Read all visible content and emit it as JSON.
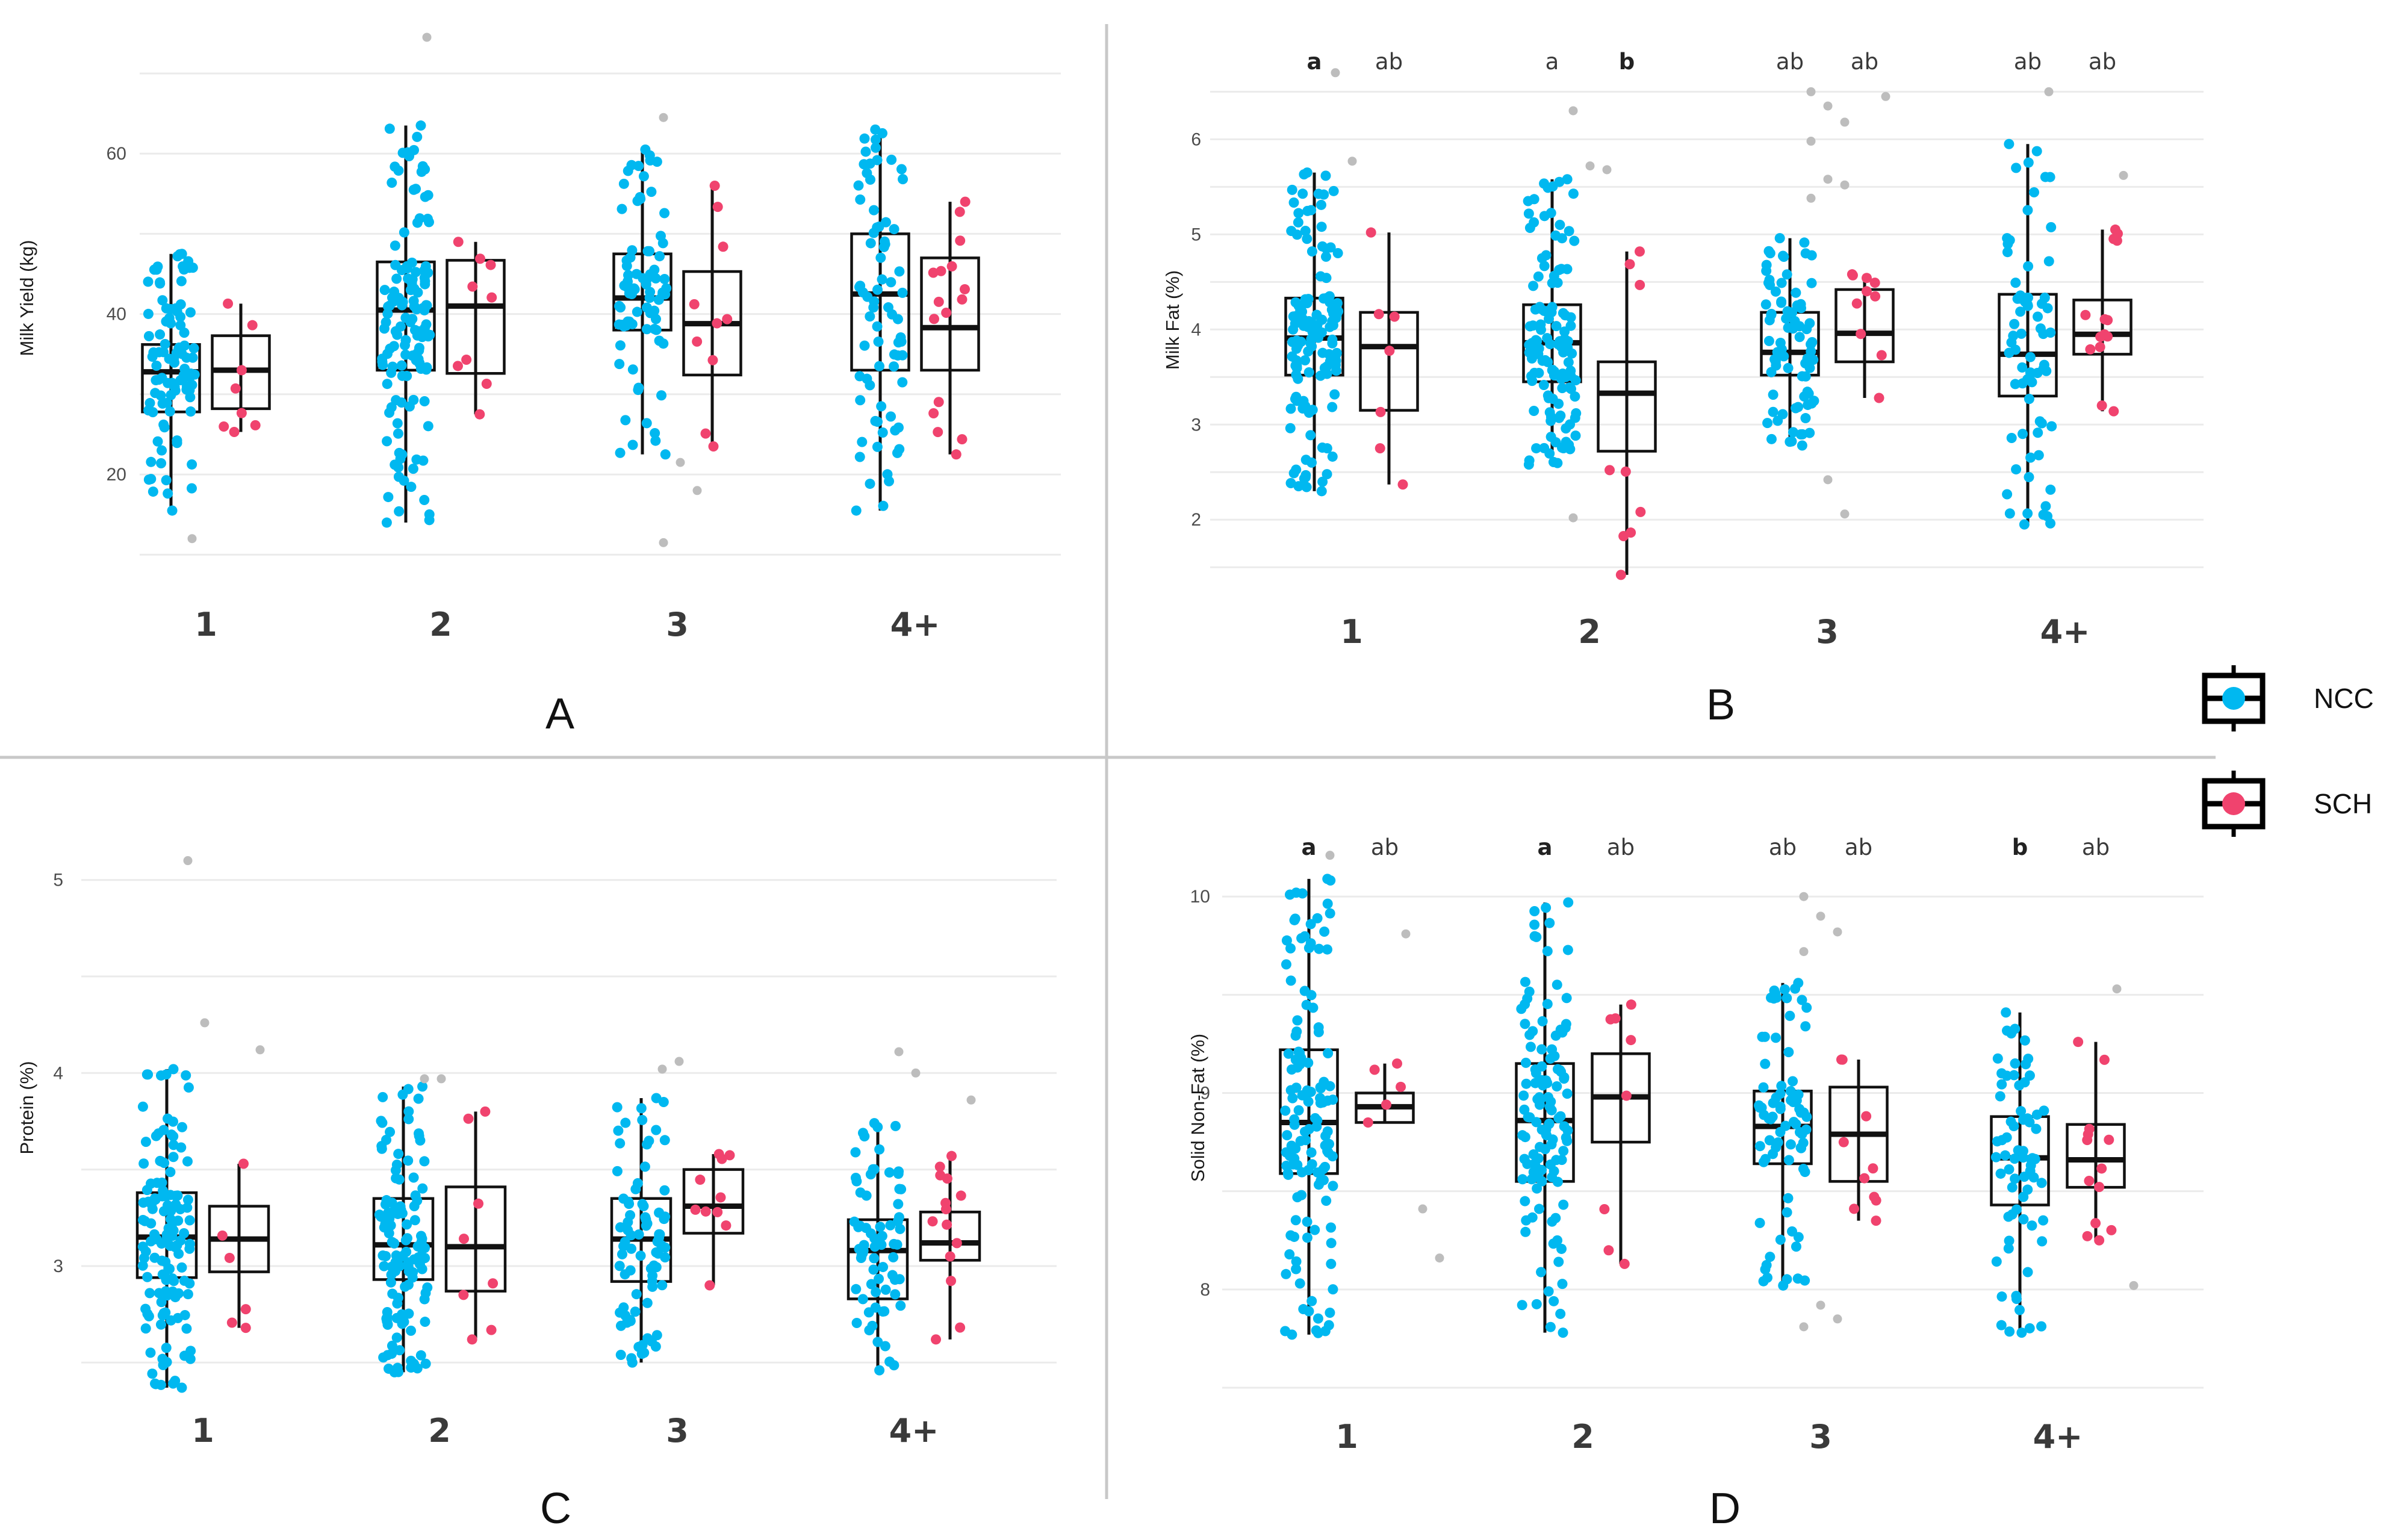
{
  "colors": {
    "ncc": "#00b8f0",
    "sch": "#f0436e",
    "outlier": "#bdbdbd",
    "box": "#111111"
  },
  "legend": {
    "items": [
      {
        "key": "ncc",
        "label": "NCC"
      },
      {
        "key": "sch",
        "label": "SCH"
      }
    ]
  },
  "chart_data": [
    {
      "type": "box",
      "panel_label": "A",
      "ylabel": "Milk Yield (kg)",
      "categories": [
        "1",
        "2",
        "3",
        "4+"
      ],
      "ylim": [
        8,
        76
      ],
      "yticks": [
        20,
        40,
        60
      ],
      "series": [
        {
          "name": "NCC",
          "boxes": [
            {
              "low": 15.5,
              "q1": 27.8,
              "median": 32.8,
              "q3": 36.2,
              "high": 47.5,
              "n": 95,
              "outliers": [
                12
              ]
            },
            {
              "low": 14,
              "q1": 33,
              "median": 40.5,
              "q3": 46.5,
              "high": 63.5,
              "n": 130,
              "outliers": [
                74.5
              ]
            },
            {
              "low": 22.5,
              "q1": 38,
              "median": 42,
              "q3": 47.5,
              "high": 60.5,
              "n": 80,
              "outliers": [
                64.5,
                21.5,
                18,
                11.5
              ]
            },
            {
              "low": 15.5,
              "q1": 33,
              "median": 42.5,
              "q3": 50,
              "high": 63,
              "n": 75,
              "outliers": []
            }
          ]
        },
        {
          "name": "SCH",
          "boxes": [
            {
              "low": 25.3,
              "q1": 28.2,
              "median": 33,
              "q3": 37.3,
              "high": 41.3,
              "n": 8,
              "outliers": []
            },
            {
              "low": 27.5,
              "q1": 32.6,
              "median": 41,
              "q3": 46.7,
              "high": 49,
              "n": 9,
              "outliers": []
            },
            {
              "low": 23.5,
              "q1": 32.4,
              "median": 38.8,
              "q3": 45.3,
              "high": 56,
              "n": 10,
              "outliers": []
            },
            {
              "low": 22.5,
              "q1": 33,
              "median": 38.3,
              "q3": 47,
              "high": 54,
              "n": 16,
              "outliers": []
            }
          ]
        }
      ],
      "letters": []
    },
    {
      "type": "box",
      "panel_label": "B",
      "ylabel": "Milk Fat (%)",
      "categories": [
        "1",
        "2",
        "3",
        "4+"
      ],
      "ylim": [
        1.4,
        6.8
      ],
      "yticks": [
        2,
        3,
        4,
        5,
        6
      ],
      "series": [
        {
          "name": "NCC",
          "boxes": [
            {
              "low": 2.3,
              "q1": 3.52,
              "median": 3.91,
              "q3": 4.33,
              "high": 5.65,
              "n": 130,
              "outliers": [
                6.7,
                5.77
              ]
            },
            {
              "low": 2.58,
              "q1": 3.45,
              "median": 3.86,
              "q3": 4.26,
              "high": 5.58,
              "n": 120,
              "outliers": [
                6.3,
                5.72,
                5.68,
                2.02
              ]
            },
            {
              "low": 2.78,
              "q1": 3.52,
              "median": 3.76,
              "q3": 4.18,
              "high": 4.96,
              "n": 80,
              "outliers": [
                6.5,
                6.35,
                6.18,
                5.98,
                5.58,
                5.52,
                5.38,
                2.42,
                2.06
              ]
            },
            {
              "low": 1.95,
              "q1": 3.3,
              "median": 3.74,
              "q3": 4.37,
              "high": 5.95,
              "n": 70,
              "outliers": [
                6.5
              ]
            }
          ]
        },
        {
          "name": "SCH",
          "boxes": [
            {
              "low": 2.37,
              "q1": 3.15,
              "median": 3.82,
              "q3": 4.18,
              "high": 5.02,
              "n": 7,
              "outliers": []
            },
            {
              "low": 1.42,
              "q1": 2.72,
              "median": 3.33,
              "q3": 3.66,
              "high": 4.82,
              "n": 9,
              "outliers": []
            },
            {
              "low": 3.28,
              "q1": 3.66,
              "median": 3.96,
              "q3": 4.42,
              "high": 4.58,
              "n": 10,
              "outliers": [
                6.45
              ]
            },
            {
              "low": 3.14,
              "q1": 3.74,
              "median": 3.95,
              "q3": 4.31,
              "high": 5.05,
              "n": 14,
              "outliers": [
                5.62
              ]
            }
          ]
        }
      ],
      "letters": [
        {
          "group": 0,
          "series": 0,
          "text": "a",
          "bold": true
        },
        {
          "group": 0,
          "series": 1,
          "text": "ab",
          "bold": false
        },
        {
          "group": 1,
          "series": 0,
          "text": "a",
          "bold": false
        },
        {
          "group": 1,
          "series": 1,
          "text": "b",
          "bold": true
        },
        {
          "group": 2,
          "series": 0,
          "text": "ab",
          "bold": false
        },
        {
          "group": 2,
          "series": 1,
          "text": "ab",
          "bold": false
        },
        {
          "group": 3,
          "series": 0,
          "text": "ab",
          "bold": false
        },
        {
          "group": 3,
          "series": 1,
          "text": "ab",
          "bold": false
        }
      ]
    },
    {
      "type": "box",
      "panel_label": "C",
      "ylabel": "Protein (%)",
      "categories": [
        "1",
        "2",
        "3",
        "4+"
      ],
      "ylim": [
        2.37,
        5.27
      ],
      "yticks": [
        3,
        4,
        5
      ],
      "series": [
        {
          "name": "NCC",
          "boxes": [
            {
              "low": 2.37,
              "q1": 2.94,
              "median": 3.15,
              "q3": 3.38,
              "high": 4.02,
              "n": 130,
              "outliers": [
                5.1,
                4.26
              ]
            },
            {
              "low": 2.45,
              "q1": 2.93,
              "median": 3.11,
              "q3": 3.35,
              "high": 3.93,
              "n": 120,
              "outliers": [
                3.97,
                3.97
              ]
            },
            {
              "low": 2.5,
              "q1": 2.92,
              "median": 3.14,
              "q3": 3.35,
              "high": 3.87,
              "n": 80,
              "outliers": [
                4.02,
                4.06
              ]
            },
            {
              "low": 2.46,
              "q1": 2.83,
              "median": 3.08,
              "q3": 3.24,
              "high": 3.74,
              "n": 70,
              "outliers": [
                4.11,
                4.0
              ]
            }
          ]
        },
        {
          "name": "SCH",
          "boxes": [
            {
              "low": 2.68,
              "q1": 2.97,
              "median": 3.14,
              "q3": 3.31,
              "high": 3.53,
              "n": 6,
              "outliers": [
                4.12
              ]
            },
            {
              "low": 2.62,
              "q1": 2.87,
              "median": 3.1,
              "q3": 3.41,
              "high": 3.8,
              "n": 8,
              "outliers": []
            },
            {
              "low": 2.9,
              "q1": 3.17,
              "median": 3.31,
              "q3": 3.5,
              "high": 3.58,
              "n": 10,
              "outliers": []
            },
            {
              "low": 2.62,
              "q1": 3.03,
              "median": 3.12,
              "q3": 3.28,
              "high": 3.57,
              "n": 14,
              "outliers": [
                3.86
              ]
            }
          ]
        }
      ],
      "letters": []
    },
    {
      "type": "box",
      "panel_label": "D",
      "ylabel": "Solid Non-Fat (%)",
      "categories": [
        "1",
        "2",
        "3",
        "4+"
      ],
      "ylim": [
        7.5,
        10.35
      ],
      "yticks": [
        8,
        9,
        10
      ],
      "series": [
        {
          "name": "NCC",
          "boxes": [
            {
              "low": 7.77,
              "q1": 8.59,
              "median": 8.85,
              "q3": 9.22,
              "high": 10.09,
              "n": 130,
              "outliers": [
                10.21
              ]
            },
            {
              "low": 7.78,
              "q1": 8.55,
              "median": 8.86,
              "q3": 9.15,
              "high": 9.97,
              "n": 120,
              "outliers": []
            },
            {
              "low": 8.02,
              "q1": 8.64,
              "median": 8.83,
              "q3": 9.01,
              "high": 9.56,
              "n": 80,
              "outliers": [
                10.0,
                9.9,
                9.82,
                9.72,
                7.92,
                7.85,
                7.81
              ]
            },
            {
              "low": 7.78,
              "q1": 8.43,
              "median": 8.67,
              "q3": 8.88,
              "high": 9.41,
              "n": 70,
              "outliers": []
            }
          ]
        },
        {
          "name": "SCH",
          "boxes": [
            {
              "low": 8.85,
              "q1": 8.85,
              "median": 8.93,
              "q3": 9.0,
              "high": 9.15,
              "n": 5,
              "outliers": [
                9.81,
                8.41,
                8.16
              ]
            },
            {
              "low": 8.13,
              "q1": 8.75,
              "median": 8.98,
              "q3": 9.2,
              "high": 9.45,
              "n": 8,
              "outliers": []
            },
            {
              "low": 8.35,
              "q1": 8.55,
              "median": 8.79,
              "q3": 9.03,
              "high": 9.17,
              "n": 10,
              "outliers": []
            },
            {
              "low": 8.25,
              "q1": 8.52,
              "median": 8.66,
              "q3": 8.84,
              "high": 9.26,
              "n": 13,
              "outliers": [
                9.53,
                8.02
              ]
            }
          ]
        }
      ],
      "letters": [
        {
          "group": 0,
          "series": 0,
          "text": "a",
          "bold": true
        },
        {
          "group": 0,
          "series": 1,
          "text": "ab",
          "bold": false
        },
        {
          "group": 1,
          "series": 0,
          "text": "a",
          "bold": true
        },
        {
          "group": 1,
          "series": 1,
          "text": "ab",
          "bold": false
        },
        {
          "group": 2,
          "series": 0,
          "text": "ab",
          "bold": false
        },
        {
          "group": 2,
          "series": 1,
          "text": "ab",
          "bold": false
        },
        {
          "group": 3,
          "series": 0,
          "text": "b",
          "bold": true
        },
        {
          "group": 3,
          "series": 1,
          "text": "ab",
          "bold": false
        }
      ]
    }
  ]
}
